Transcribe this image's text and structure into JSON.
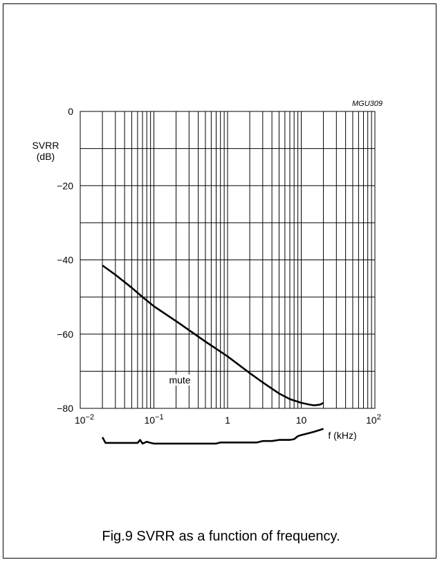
{
  "caption": "Fig.9  SVRR as a function of frequency.",
  "chart_data": {
    "type": "line",
    "figure_code": "MGU309",
    "ylabel_line1": "SVRR",
    "ylabel_line2": "(dB)",
    "xlabel": "f (kHz)",
    "x_scale": "log",
    "xlim": [
      0.01,
      100
    ],
    "ylim": [
      -80,
      0
    ],
    "grid": true,
    "y_ticks": [
      {
        "value": 0,
        "label": "0"
      },
      {
        "value": -20,
        "label": "−20"
      },
      {
        "value": -40,
        "label": "−40"
      },
      {
        "value": -60,
        "label": "−60"
      },
      {
        "value": -80,
        "label": "−80"
      }
    ],
    "x_ticks": [
      {
        "value": 0.01,
        "base": "10",
        "exp": "−2"
      },
      {
        "value": 0.1,
        "base": "10",
        "exp": "−1"
      },
      {
        "value": 1,
        "base": "1",
        "exp": ""
      },
      {
        "value": 10,
        "base": "10",
        "exp": ""
      },
      {
        "value": 100,
        "base": "10",
        "exp": "2"
      }
    ],
    "series": [
      {
        "x": [
          0.02,
          0.03,
          0.05,
          0.07,
          0.1,
          0.2,
          0.5,
          1,
          2,
          3,
          5,
          7,
          10,
          13,
          15,
          18,
          20
        ],
        "y": [
          -41.5,
          -44,
          -47.5,
          -50,
          -52.5,
          -56.5,
          -62,
          -66,
          -70.5,
          -73,
          -76,
          -77.5,
          -78.5,
          -79,
          -79.2,
          -79.0,
          -78.5
        ]
      },
      {
        "name": "mute",
        "x": [
          0.02,
          0.022,
          0.03,
          0.05,
          0.06,
          0.065,
          0.07,
          0.08,
          0.09,
          0.1,
          0.2,
          0.5,
          0.7,
          0.8,
          1,
          2,
          2.5,
          3,
          4,
          5,
          7,
          8,
          9,
          10,
          12,
          15,
          18,
          20
        ],
        "y": [
          -87.8,
          -89.3,
          -89.3,
          -89.3,
          -89.3,
          -88.5,
          -89.5,
          -89.0,
          -89.3,
          -89.5,
          -89.5,
          -89.5,
          -89.5,
          -89.2,
          -89.2,
          -89.2,
          -89.2,
          -88.8,
          -88.8,
          -88.5,
          -88.5,
          -88.3,
          -87.5,
          -87.2,
          -86.8,
          -86.3,
          -85.8,
          -85.5
        ]
      }
    ]
  }
}
